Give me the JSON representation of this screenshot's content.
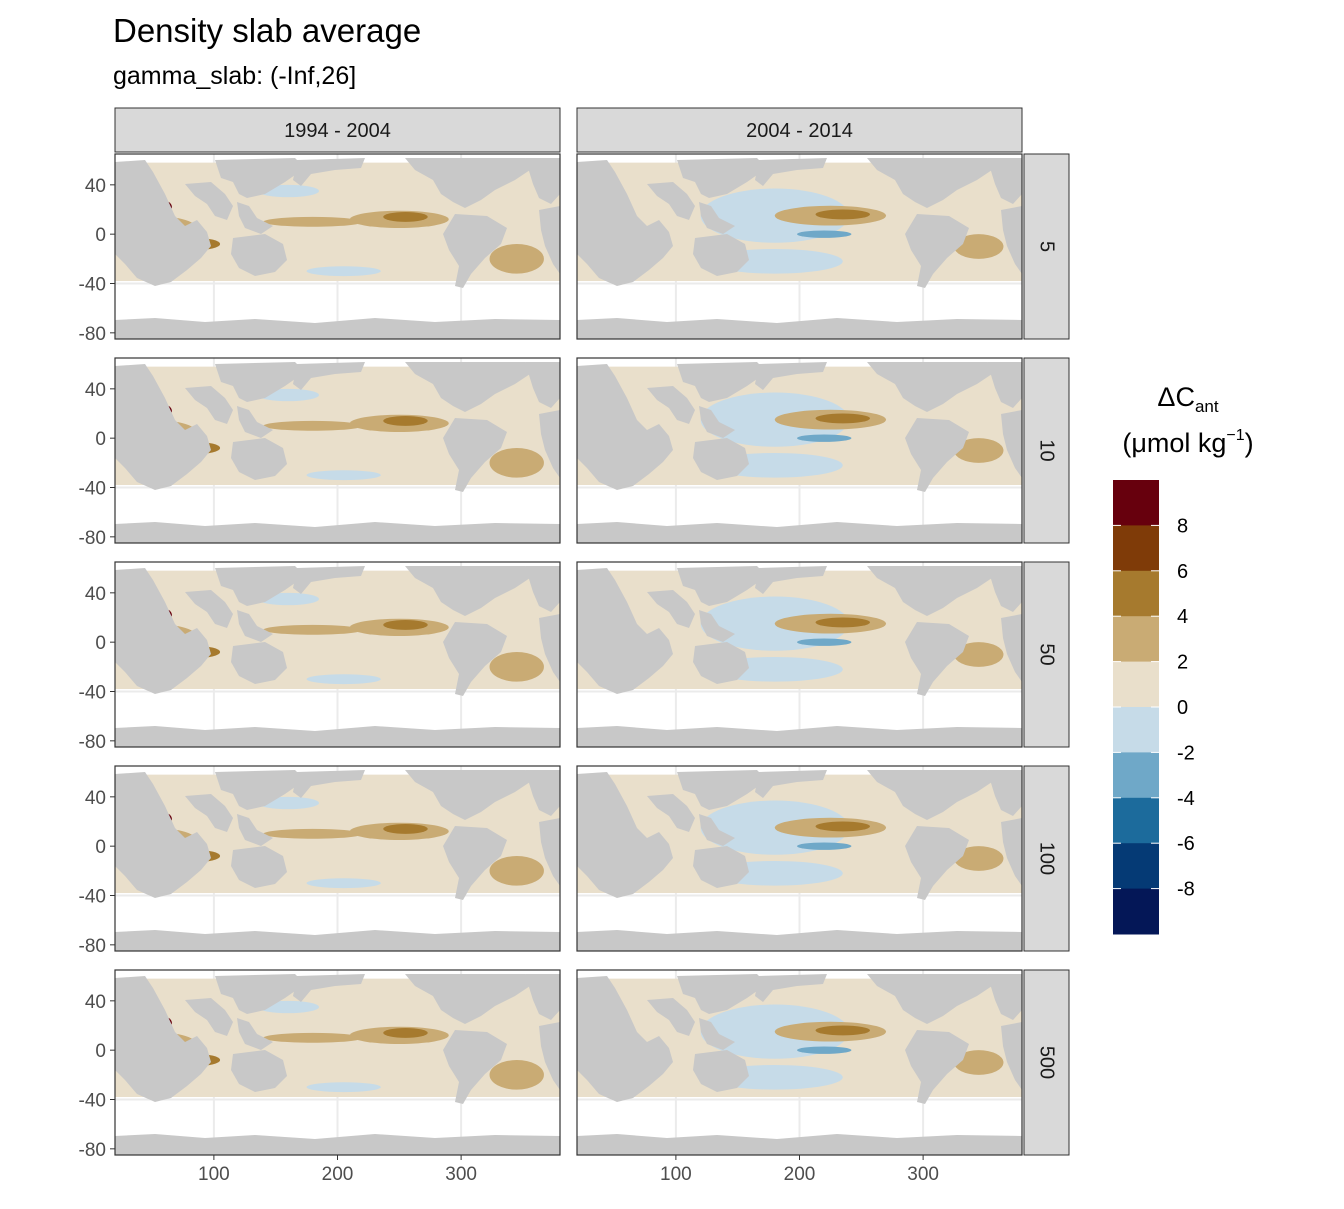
{
  "title": "Density slab average",
  "subtitle": "gamma_slab: (-Inf,26]",
  "columns": [
    "1994 - 2004",
    "2004 - 2014"
  ],
  "rows": [
    "5",
    "10",
    "50",
    "100",
    "500"
  ],
  "x_axis": {
    "ticks": [
      "100",
      "200",
      "300"
    ],
    "values": [
      100,
      200,
      300
    ],
    "range": [
      20,
      380
    ]
  },
  "y_axis": {
    "ticks": [
      "40",
      "0",
      "-40",
      "-80"
    ],
    "values": [
      40,
      0,
      -40,
      -80
    ],
    "range": [
      -85,
      65
    ]
  },
  "legend": {
    "title_main": "ΔC",
    "title_sub": "ant",
    "unit": "(μmol kg",
    "unit_sup": "−1",
    "unit_close": ")",
    "tick_labels": [
      "8",
      "6",
      "4",
      "2",
      "0",
      "-2",
      "-4",
      "-6",
      "-8"
    ],
    "colors": [
      "#67000d",
      "#7f3b08",
      "#a67a2e",
      "#c9ab74",
      "#e9dfcb",
      "#c6dbe8",
      "#6fa8c8",
      "#1c6b9c",
      "#053a75",
      "#041757"
    ]
  },
  "colors": {
    "land": "#c8c8c8",
    "ocean_bg": "#ffffff",
    "grid": "#ebebeb",
    "strip_bg": "#d9d9d9",
    "panel_border": "#333333"
  },
  "chart_data": {
    "type": "heatmap",
    "description_units": "longitude (x, degrees east) vs latitude (y, degrees)",
    "facet_columns": [
      "1994 - 2004",
      "2004 - 2014"
    ],
    "facet_rows": [
      "5",
      "10",
      "50",
      "100",
      "500"
    ],
    "value_scale": {
      "min": -10,
      "max": 10,
      "step": 2
    },
    "fields": {
      "1994 - 2004": [
        {
          "lon": 60,
          "lat": 22,
          "rx": 6,
          "ry": 5,
          "value": 9
        },
        {
          "lon": 60,
          "lat": 0,
          "rx": 30,
          "ry": 14,
          "value": 3
        },
        {
          "lon": 85,
          "lat": -8,
          "rx": 20,
          "ry": 5,
          "value": 5
        },
        {
          "lon": 250,
          "lat": 12,
          "rx": 40,
          "ry": 7,
          "value": 3
        },
        {
          "lon": 255,
          "lat": 14,
          "rx": 18,
          "ry": 4,
          "value": 5
        },
        {
          "lon": 345,
          "lat": -20,
          "rx": 22,
          "ry": 12,
          "value": 3
        },
        {
          "lon": 180,
          "lat": 10,
          "rx": 40,
          "ry": 4,
          "value": 3
        },
        {
          "lon": 160,
          "lat": 35,
          "rx": 25,
          "ry": 5,
          "value": -1
        },
        {
          "lon": 205,
          "lat": -30,
          "rx": 30,
          "ry": 4,
          "value": -1
        }
      ],
      "2004 - 2014": [
        {
          "lon": 60,
          "lat": 22,
          "rx": 4,
          "ry": 4,
          "value": -5
        },
        {
          "lon": 180,
          "lat": 15,
          "rx": 60,
          "ry": 22,
          "value": -1
        },
        {
          "lon": 180,
          "lat": -22,
          "rx": 55,
          "ry": 10,
          "value": -1
        },
        {
          "lon": 225,
          "lat": 15,
          "rx": 45,
          "ry": 8,
          "value": 3
        },
        {
          "lon": 235,
          "lat": 16,
          "rx": 22,
          "ry": 4,
          "value": 5
        },
        {
          "lon": 220,
          "lat": 0,
          "rx": 22,
          "ry": 3,
          "value": -3
        },
        {
          "lon": 345,
          "lat": -10,
          "rx": 20,
          "ry": 10,
          "value": 3
        },
        {
          "lon": 60,
          "lat": -5,
          "rx": 35,
          "ry": 5,
          "value": 3
        },
        {
          "lon": 315,
          "lat": 40,
          "rx": 12,
          "ry": 4,
          "value": -3
        }
      ]
    }
  }
}
